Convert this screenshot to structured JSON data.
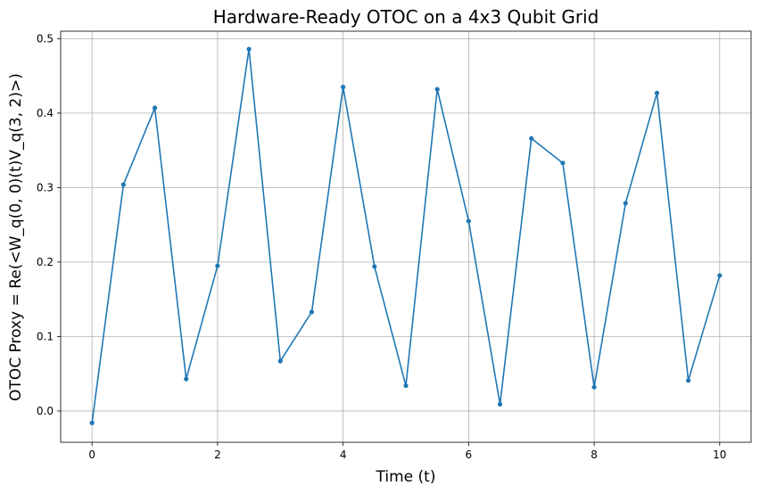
{
  "chart_data": {
    "type": "line",
    "title": "Hardware-Ready OTOC on a 4x3 Qubit Grid",
    "xlabel": "Time (t)",
    "ylabel": "OTOC Proxy = Re(<W_q(0, 0)(t)V_q(3, 2)>)",
    "xlim": [
      -0.5,
      10.5
    ],
    "ylim": [
      -0.042,
      0.51
    ],
    "xticks": [
      0,
      2,
      4,
      6,
      8,
      10
    ],
    "yticks": [
      0.0,
      0.1,
      0.2,
      0.3,
      0.4,
      0.5
    ],
    "xtick_labels": [
      "0",
      "2",
      "4",
      "6",
      "8",
      "10"
    ],
    "ytick_labels": [
      "0.0",
      "0.1",
      "0.2",
      "0.3",
      "0.4",
      "0.5"
    ],
    "grid": true,
    "color": "#1f77b4",
    "marker": "circle",
    "series": [
      {
        "x": [
          0,
          0.5,
          1,
          1.5,
          2,
          2.5,
          3,
          3.5,
          4,
          4.5,
          5,
          5.5,
          6,
          6.5,
          7,
          7.5,
          8,
          8.5,
          9,
          9.5,
          10
        ],
        "values": [
          -0.016,
          0.304,
          0.407,
          0.043,
          0.195,
          0.486,
          0.067,
          0.133,
          0.435,
          0.194,
          0.034,
          0.432,
          0.255,
          0.009,
          0.366,
          0.333,
          0.032,
          0.279,
          0.427,
          0.041,
          0.182
        ]
      }
    ]
  }
}
